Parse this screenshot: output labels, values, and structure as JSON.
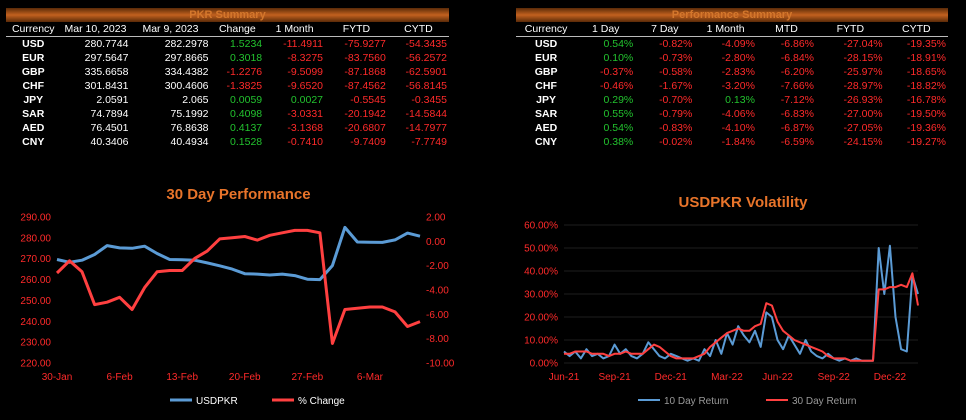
{
  "pkr_summary": {
    "title": "PKR Summary",
    "columns": [
      "Currency",
      "Mar 10, 2023",
      "Mar 9, 2023",
      "Change",
      "1 Month",
      "FYTD",
      "CYTD"
    ],
    "rows": [
      [
        "USD",
        "280.7744",
        "282.2978",
        "1.5234",
        "-11.4911",
        "-75.9277",
        "-54.3435"
      ],
      [
        "EUR",
        "297.5647",
        "297.8665",
        "0.3018",
        "-8.3275",
        "-83.7560",
        "-56.2572"
      ],
      [
        "GBP",
        "335.6658",
        "334.4382",
        "-1.2276",
        "-9.5099",
        "-87.1868",
        "-62.5901"
      ],
      [
        "CHF",
        "301.8431",
        "300.4606",
        "-1.3825",
        "-9.6520",
        "-87.4562",
        "-56.8145"
      ],
      [
        "JPY",
        "2.0591",
        "2.065",
        "0.0059",
        "0.0027",
        "-0.5545",
        "-0.3455"
      ],
      [
        "SAR",
        "74.7894",
        "75.1992",
        "0.4098",
        "-3.0331",
        "-20.1942",
        "-14.5844"
      ],
      [
        "AED",
        "76.4501",
        "76.8638",
        "0.4137",
        "-3.1368",
        "-20.6807",
        "-14.7977"
      ],
      [
        "CNY",
        "40.3406",
        "40.4934",
        "0.1528",
        "-0.7410",
        "-9.7409",
        "-7.7749"
      ]
    ]
  },
  "performance_summary": {
    "title": "Performance Summary",
    "columns": [
      "Currency",
      "1 Day",
      "7 Day",
      "1 Month",
      "MTD",
      "FYTD",
      "CYTD"
    ],
    "rows": [
      [
        "USD",
        "0.54%",
        "-0.82%",
        "-4.09%",
        "-6.86%",
        "-27.04%",
        "-19.35%"
      ],
      [
        "EUR",
        "0.10%",
        "-0.73%",
        "-2.80%",
        "-6.84%",
        "-28.15%",
        "-18.91%"
      ],
      [
        "GBP",
        "-0.37%",
        "-0.58%",
        "-2.83%",
        "-6.20%",
        "-25.97%",
        "-18.65%"
      ],
      [
        "CHF",
        "-0.46%",
        "-1.67%",
        "-3.20%",
        "-7.66%",
        "-28.97%",
        "-18.82%"
      ],
      [
        "JPY",
        "0.29%",
        "-0.70%",
        "0.13%",
        "-7.12%",
        "-26.93%",
        "-16.78%"
      ],
      [
        "SAR",
        "0.55%",
        "-0.79%",
        "-4.06%",
        "-6.83%",
        "-27.00%",
        "-19.50%"
      ],
      [
        "AED",
        "0.54%",
        "-0.83%",
        "-4.10%",
        "-6.87%",
        "-27.05%",
        "-19.36%"
      ],
      [
        "CNY",
        "0.38%",
        "-0.02%",
        "-1.84%",
        "-6.59%",
        "-24.15%",
        "-19.27%"
      ]
    ]
  },
  "colors": {
    "positive": "#22c22e",
    "negative": "#ff2a2a",
    "title": "#e8742a",
    "blue": "#5b9bd5",
    "red": "#ff4040"
  },
  "chart_data": [
    {
      "type": "line",
      "title": "30 Day Performance",
      "x_ticks": [
        "30-Jan",
        "6-Feb",
        "13-Feb",
        "20-Feb",
        "27-Feb",
        "6-Mar"
      ],
      "x": [
        "30-Jan",
        "31-Jan",
        "1-Feb",
        "2-Feb",
        "3-Feb",
        "6-Feb",
        "7-Feb",
        "8-Feb",
        "9-Feb",
        "10-Feb",
        "13-Feb",
        "14-Feb",
        "15-Feb",
        "16-Feb",
        "17-Feb",
        "20-Feb",
        "21-Feb",
        "22-Feb",
        "23-Feb",
        "24-Feb",
        "27-Feb",
        "28-Feb",
        "1-Mar",
        "2-Mar",
        "3-Mar",
        "6-Mar",
        "7-Mar",
        "8-Mar",
        "9-Mar",
        "10-Mar"
      ],
      "y_left_lim": [
        220,
        290
      ],
      "y_left_ticks": [
        "220.00",
        "230.00",
        "240.00",
        "250.00",
        "260.00",
        "270.00",
        "280.00",
        "290.00"
      ],
      "y_right_lim": [
        -10,
        2
      ],
      "y_right_ticks": [
        "-10.00",
        "-8.00",
        "-6.00",
        "-4.00",
        "-2.00",
        "0.00",
        "2.00"
      ],
      "legend_position": "bottom",
      "series": [
        {
          "name": "USDPKR",
          "axis": "left",
          "color": "#5b9bd5",
          "values": [
            269.6,
            268.3,
            269.3,
            272.0,
            276.3,
            275.2,
            275.0,
            276.0,
            272.5,
            269.6,
            269.5,
            269.3,
            268.0,
            266.6,
            265.0,
            262.8,
            262.6,
            262.2,
            262.6,
            261.9,
            260.2,
            260.0,
            266.7,
            285.0,
            278.0,
            277.9,
            277.8,
            279.0,
            282.3,
            280.8
          ]
        },
        {
          "name": "% Change",
          "axis": "right",
          "color": "#ff4040",
          "values": [
            -2.6,
            -1.6,
            -2.5,
            -5.2,
            -5.0,
            -4.6,
            -5.6,
            -3.8,
            -2.5,
            -2.4,
            -2.4,
            -1.4,
            -0.8,
            0.2,
            0.3,
            0.4,
            0.1,
            0.5,
            0.7,
            0.9,
            0.9,
            0.7,
            -8.4,
            -5.6,
            -5.5,
            -5.4,
            -5.4,
            -5.8,
            -7.0,
            -6.6
          ]
        }
      ]
    },
    {
      "type": "line",
      "title": "USDPKR Volatility",
      "x_ticks": [
        "Jun-21",
        "Sep-21",
        "Dec-21",
        "Mar-22",
        "Jun-22",
        "Sep-22",
        "Dec-22"
      ],
      "y_lim": [
        0,
        60
      ],
      "y_ticks": [
        "0.00%",
        "10.00%",
        "20.00%",
        "30.00%",
        "40.00%",
        "50.00%",
        "60.00%"
      ],
      "legend_position": "bottom",
      "series": [
        {
          "name": "10 Day Return",
          "color": "#5b9bd5",
          "points": [
            [
              0,
              5
            ],
            [
              1,
              3
            ],
            [
              2,
              5
            ],
            [
              3,
              2
            ],
            [
              4,
              6
            ],
            [
              5,
              3
            ],
            [
              6,
              4
            ],
            [
              7,
              2
            ],
            [
              8,
              3
            ],
            [
              9,
              8
            ],
            [
              10,
              4
            ],
            [
              11,
              6
            ],
            [
              12,
              3
            ],
            [
              13,
              2
            ],
            [
              14,
              4
            ],
            [
              15,
              9
            ],
            [
              16,
              6
            ],
            [
              17,
              3
            ],
            [
              18,
              2
            ],
            [
              19,
              4
            ],
            [
              20,
              3
            ],
            [
              21,
              2
            ],
            [
              22,
              1
            ],
            [
              23,
              2
            ],
            [
              24,
              1
            ],
            [
              25,
              6
            ],
            [
              26,
              3
            ],
            [
              27,
              10
            ],
            [
              28,
              4
            ],
            [
              29,
              13
            ],
            [
              30,
              8
            ],
            [
              31,
              16
            ],
            [
              32,
              12
            ],
            [
              33,
              9
            ],
            [
              34,
              14
            ],
            [
              35,
              7
            ],
            [
              36,
              22
            ],
            [
              37,
              20
            ],
            [
              38,
              10
            ],
            [
              39,
              6
            ],
            [
              40,
              12
            ],
            [
              41,
              8
            ],
            [
              42,
              4
            ],
            [
              43,
              10
            ],
            [
              44,
              5
            ],
            [
              45,
              3
            ],
            [
              46,
              2
            ],
            [
              47,
              4
            ],
            [
              48,
              2
            ],
            [
              49,
              1
            ],
            [
              50,
              2
            ],
            [
              51,
              1
            ],
            [
              52,
              2
            ],
            [
              53,
              1
            ],
            [
              54,
              1
            ],
            [
              55,
              1
            ],
            [
              56,
              50
            ],
            [
              57,
              30
            ],
            [
              58,
              51
            ],
            [
              59,
              20
            ],
            [
              60,
              6
            ],
            [
              61,
              5
            ],
            [
              62,
              38
            ],
            [
              63,
              30
            ]
          ]
        },
        {
          "name": "30 Day Return",
          "color": "#ff4040",
          "points": [
            [
              0,
              4
            ],
            [
              1,
              4
            ],
            [
              2,
              5
            ],
            [
              3,
              5
            ],
            [
              4,
              5
            ],
            [
              5,
              4
            ],
            [
              6,
              4
            ],
            [
              7,
              4
            ],
            [
              8,
              3
            ],
            [
              9,
              4
            ],
            [
              10,
              4
            ],
            [
              11,
              5
            ],
            [
              12,
              4
            ],
            [
              13,
              4
            ],
            [
              14,
              4
            ],
            [
              15,
              6
            ],
            [
              16,
              8
            ],
            [
              17,
              7
            ],
            [
              18,
              5
            ],
            [
              19,
              3
            ],
            [
              20,
              2
            ],
            [
              21,
              2
            ],
            [
              22,
              2
            ],
            [
              23,
              2
            ],
            [
              24,
              3
            ],
            [
              25,
              4
            ],
            [
              26,
              7
            ],
            [
              27,
              9
            ],
            [
              28,
              11
            ],
            [
              29,
              13
            ],
            [
              30,
              14
            ],
            [
              31,
              15
            ],
            [
              32,
              14
            ],
            [
              33,
              14
            ],
            [
              34,
              16
            ],
            [
              35,
              17
            ],
            [
              36,
              26
            ],
            [
              37,
              25
            ],
            [
              38,
              18
            ],
            [
              39,
              14
            ],
            [
              40,
              12
            ],
            [
              41,
              10
            ],
            [
              42,
              9
            ],
            [
              43,
              8
            ],
            [
              44,
              7
            ],
            [
              45,
              6
            ],
            [
              46,
              5
            ],
            [
              47,
              3
            ],
            [
              48,
              2
            ],
            [
              49,
              2
            ],
            [
              50,
              2
            ],
            [
              51,
              1
            ],
            [
              52,
              1
            ],
            [
              53,
              1
            ],
            [
              54,
              1
            ],
            [
              55,
              1
            ],
            [
              56,
              32
            ],
            [
              57,
              32
            ],
            [
              58,
              33
            ],
            [
              59,
              33
            ],
            [
              60,
              34
            ],
            [
              61,
              33
            ],
            [
              62,
              39
            ],
            [
              63,
              25
            ]
          ]
        }
      ]
    }
  ]
}
